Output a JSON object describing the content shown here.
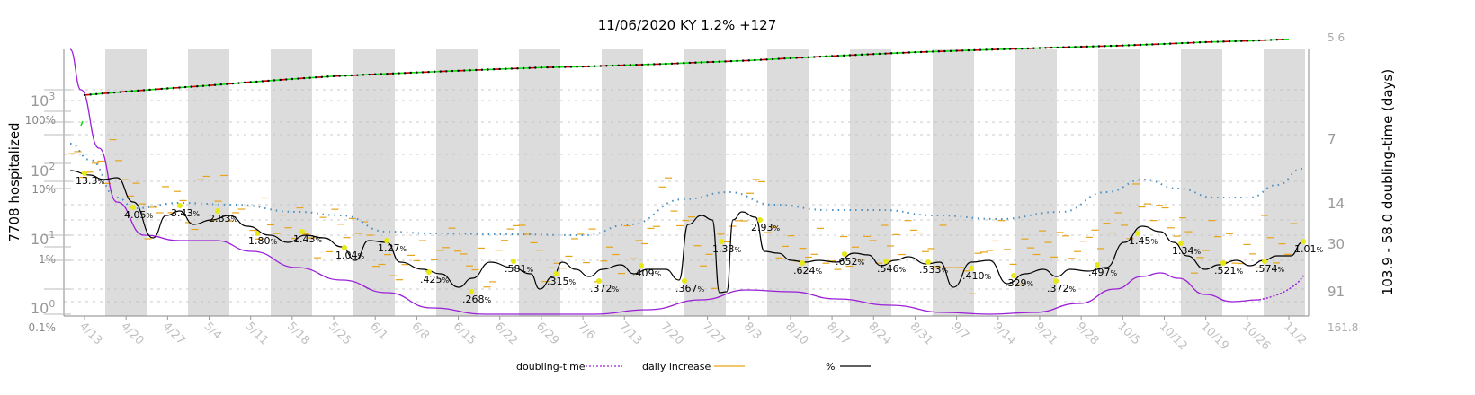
{
  "chart_data": {
    "type": "line",
    "title": "11/06/2020 KY 1.2% +127",
    "ylabel_left": "7708 hospitalized",
    "ylabel_right": "103.9 - 58.0 doubling-time (days)",
    "x_tick_labels": [
      "4/13",
      "4/20",
      "4/27",
      "5/4",
      "5/11",
      "5/18",
      "5/25",
      "6/1",
      "6/8",
      "6/15",
      "6/22",
      "6/29",
      "7/6",
      "7/13",
      "7/20",
      "7/27",
      "8/3",
      "8/10",
      "8/17",
      "8/24",
      "8/31",
      "9/7",
      "9/14",
      "9/21",
      "9/28",
      "10/5",
      "10/12",
      "10/19",
      "10/26",
      "11/2"
    ],
    "y_log_ticks": [
      "10^0",
      "10^1",
      "10^2",
      "10^3"
    ],
    "y_pct_ticks": [
      "0.1%",
      "1%",
      "10%",
      "100%"
    ],
    "right_ticks": [
      "5.6",
      "7",
      "14",
      "30",
      "91",
      "161.8"
    ],
    "percent_labels": [
      "13.3",
      "4.05",
      "3.43",
      "2.83",
      "1.80",
      "1.43",
      "1.04",
      "1.27",
      ".425",
      ".268",
      ".581",
      ".315",
      ".372",
      ".409",
      ".367",
      "1.33",
      "2.93",
      ".624",
      ".652",
      ".546",
      ".533",
      ".410",
      ".329",
      ".372",
      ".497",
      "1.45",
      "1.34",
      ".521",
      ".574",
      "1.01"
    ],
    "percent_symbol": "%",
    "cumulative_hospitalized": [
      1200,
      1350,
      1500,
      1650,
      1850,
      2050,
      2250,
      2400,
      2550,
      2700,
      2850,
      3000,
      3100,
      3250,
      3400,
      3600,
      3800,
      4100,
      4400,
      4700,
      5000,
      5250,
      5500,
      5750,
      6000,
      6250,
      6600,
      7000,
      7300,
      7708
    ],
    "legend": [
      {
        "name": "doubling-time",
        "color": "#9a1fd6",
        "style": "dotted"
      },
      {
        "name": "daily increase",
        "color": "#e8a317",
        "style": "solid"
      },
      {
        "name": "%",
        "color": "#000000",
        "style": "solid"
      }
    ],
    "colors": {
      "band": "#dcdcdc",
      "green": "#11dd11",
      "red": "#cc0000",
      "avg": "#4a8fc0",
      "daily": "#e8a317",
      "purple": "#9a1fd6",
      "label_dot": "#e8e817"
    }
  }
}
